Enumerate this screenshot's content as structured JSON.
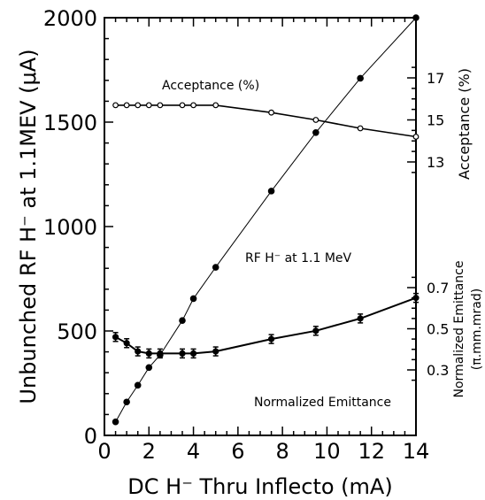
{
  "chart_data": {
    "type": "line",
    "xlabel": "DC H⁻ Thru Inflecto (mA)",
    "ylabel": "Unbunched RF H⁻ at 1.1MEV (μA)",
    "xlim": [
      0,
      14
    ],
    "ylim": [
      0,
      2000
    ],
    "x_ticks": [
      "0",
      "2",
      "4",
      "6",
      "8",
      "10",
      "12",
      "14"
    ],
    "y_ticks": [
      "0",
      "500",
      "1000",
      "1500",
      "2000"
    ],
    "right_axes": [
      {
        "label": "Acceptance (%)",
        "ticks": [
          "13",
          "15",
          "17"
        ]
      },
      {
        "label_lines": [
          "Normalized Emittance",
          "(π.mm.mrad)"
        ],
        "ticks": [
          "0.3",
          "0.5",
          "0.7"
        ]
      }
    ],
    "series": [
      {
        "name": "RF H⁻ at 1.1 MeV",
        "unit": "μA",
        "x": [
          0.5,
          1.0,
          1.5,
          2.0,
          2.5,
          3.5,
          4.0,
          5.0,
          7.5,
          9.5,
          11.5,
          14.0
        ],
        "y": [
          65,
          160,
          240,
          325,
          385,
          550,
          655,
          805,
          1170,
          1450,
          1710,
          2000
        ]
      },
      {
        "name": "Acceptance (%)",
        "unit": "%",
        "x": [
          0.5,
          1.0,
          1.5,
          2.0,
          2.5,
          3.5,
          4.0,
          5.0,
          7.5,
          9.5,
          11.5,
          14.0
        ],
        "y": [
          15.7,
          15.7,
          15.7,
          15.7,
          15.7,
          15.7,
          15.7,
          15.7,
          15.35,
          15.0,
          14.6,
          14.2
        ]
      },
      {
        "name": "Normalized Emittance",
        "unit": "π.mm.mrad",
        "x": [
          0.5,
          1.0,
          1.5,
          2.0,
          2.5,
          3.5,
          4.0,
          5.0,
          7.5,
          9.5,
          11.5,
          14.0
        ],
        "y": [
          0.46,
          0.43,
          0.39,
          0.38,
          0.38,
          0.38,
          0.38,
          0.39,
          0.45,
          0.49,
          0.55,
          0.65
        ]
      }
    ],
    "annotations": {
      "acceptance": "Acceptance (%)",
      "rf": "RF H⁻ at 1.1 MeV",
      "emittance": "Normalized Emittance"
    },
    "grid": false
  }
}
